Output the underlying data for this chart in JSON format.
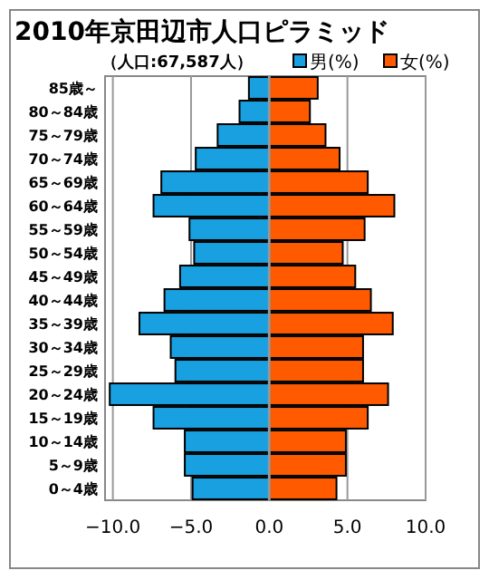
{
  "chart_data": {
    "type": "bar",
    "orientation": "horizontal",
    "stacked": true,
    "title": "2010年京田辺市人口ピラミッド",
    "subtitle": "（人口:67,587人）",
    "categories": [
      "85歳～",
      "80～84歳",
      "75～79歳",
      "70～74歳",
      "65～69歳",
      "60～64歳",
      "55～59歳",
      "50～54歳",
      "45～49歳",
      "40～44歳",
      "35～39歳",
      "30～34歳",
      "25～29歳",
      "20～24歳",
      "15～19歳",
      "10～14歳",
      "5～9歳",
      "0～4歳"
    ],
    "series": [
      {
        "name": "男(%)",
        "color": "#18a0e0",
        "values": [
          -1.3,
          -1.9,
          -3.3,
          -4.7,
          -6.9,
          -7.4,
          -5.1,
          -4.8,
          -5.7,
          -6.7,
          -8.3,
          -6.3,
          -6.0,
          -10.2,
          -7.4,
          -5.4,
          -5.4,
          -4.9
        ]
      },
      {
        "name": "女(%)",
        "color": "#ff5a00",
        "values": [
          3.1,
          2.6,
          3.6,
          4.5,
          6.3,
          8.0,
          6.1,
          4.7,
          5.5,
          6.5,
          7.9,
          6.0,
          6.0,
          7.6,
          6.3,
          4.9,
          4.9,
          4.3
        ]
      }
    ],
    "xlim": [
      -10.5,
      10
    ],
    "xticks": [
      {
        "value": -10,
        "label": "−10.0"
      },
      {
        "value": -5,
        "label": "−5.0"
      },
      {
        "value": 0,
        "label": "0.0"
      },
      {
        "value": 5,
        "label": "5.0"
      },
      {
        "value": 10,
        "label": "10.0"
      }
    ],
    "grid": "x",
    "legend": "top right"
  }
}
